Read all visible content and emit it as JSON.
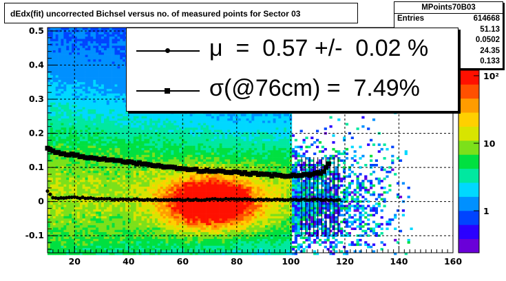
{
  "title": "dEdx(fit) uncorrected Bichsel versus no. of measured points for Sector 03",
  "stats_box": {
    "name": "MPoints70B03",
    "rows": [
      {
        "label": "Entries",
        "value": "614668"
      },
      {
        "label": "",
        "value": "51.13"
      },
      {
        "label": "",
        "value": "0.0502"
      },
      {
        "label": "",
        "value": "24.35"
      },
      {
        "label": "",
        "value": "0.133"
      }
    ]
  },
  "legend": [
    {
      "marker": "circle",
      "text": "μ  =  0.57 +/-  0.02 %"
    },
    {
      "marker": "square",
      "text": "σ(@76cm) =  7.49%"
    }
  ],
  "chart_data": {
    "type": "heatmap",
    "title": "dEdx(fit) uncorrected Bichsel versus no. of measured points for Sector 03",
    "xlabel": "",
    "ylabel": "",
    "xlim": [
      10,
      160
    ],
    "ylim": [
      -0.15,
      0.51
    ],
    "x_ticks": [
      "20",
      "40",
      "60",
      "80",
      "100",
      "120",
      "140",
      "160"
    ],
    "y_ticks": [
      "-0.1",
      "0",
      "0.1",
      "0.2",
      "0.3",
      "0.4",
      "0.5"
    ],
    "grid": true,
    "z_scale": "log",
    "z_ticks": [
      "1",
      "10",
      "10²"
    ],
    "series": [
      {
        "marker": "circle",
        "x": [
          10,
          12,
          20,
          30,
          40,
          50,
          60,
          70,
          80,
          90,
          100,
          105,
          110,
          114,
          118
        ],
        "y": [
          0.032,
          0.01,
          0.012,
          0.008,
          0.006,
          0.006,
          0.005,
          0.006,
          0.007,
          0.006,
          0.005,
          0.006,
          0.007,
          0.005,
          0.005
        ]
      },
      {
        "marker": "square",
        "x": [
          10,
          12,
          14,
          16,
          18,
          20,
          22,
          24,
          26,
          28,
          30,
          32,
          34,
          36,
          40,
          44,
          48,
          52,
          56,
          60,
          64,
          68,
          72,
          76,
          80,
          84,
          88,
          92,
          96,
          100,
          104,
          108,
          112,
          114
        ],
        "y": [
          0.155,
          0.148,
          0.142,
          0.14,
          0.138,
          0.137,
          0.133,
          0.13,
          0.128,
          0.126,
          0.125,
          0.123,
          0.121,
          0.119,
          0.115,
          0.111,
          0.107,
          0.103,
          0.099,
          0.096,
          0.093,
          0.09,
          0.088,
          0.086,
          0.084,
          0.082,
          0.08,
          0.078,
          0.077,
          0.076,
          0.078,
          0.08,
          0.086,
          0.11
        ]
      }
    ]
  },
  "colors": {
    "palette": [
      "#6a00d8",
      "#2b00ff",
      "#0044ff",
      "#0090ff",
      "#00d8ff",
      "#00e8a0",
      "#00e040",
      "#7ce01a",
      "#d8e400",
      "#ffd000",
      "#ff9c00",
      "#ff5000",
      "#ff1000"
    ]
  }
}
